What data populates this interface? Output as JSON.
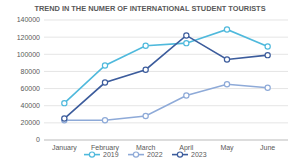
{
  "chart_data": {
    "type": "line",
    "title": "TREND IN THE NUMER OF INTERNATIONAL STUDENT TOURISTS",
    "categories": [
      "January",
      "February",
      "March",
      "April",
      "May",
      "June"
    ],
    "series": [
      {
        "name": "2019",
        "color": "#4fb9dc",
        "marker": "circle",
        "values": [
          43000,
          87000,
          110000,
          113000,
          129000,
          109000
        ]
      },
      {
        "name": "2022",
        "color": "#8eaad8",
        "marker": "circle",
        "values": [
          23000,
          23000,
          28000,
          52000,
          65000,
          61000
        ]
      },
      {
        "name": "2023",
        "color": "#3c5c9c",
        "marker": "circle",
        "values": [
          25000,
          67000,
          82000,
          122000,
          94000,
          99000
        ]
      }
    ],
    "ylim": [
      0,
      140000
    ],
    "yticks": [
      0,
      20000,
      40000,
      60000,
      80000,
      100000,
      120000,
      140000
    ],
    "grid": true,
    "legend": "bottom"
  }
}
